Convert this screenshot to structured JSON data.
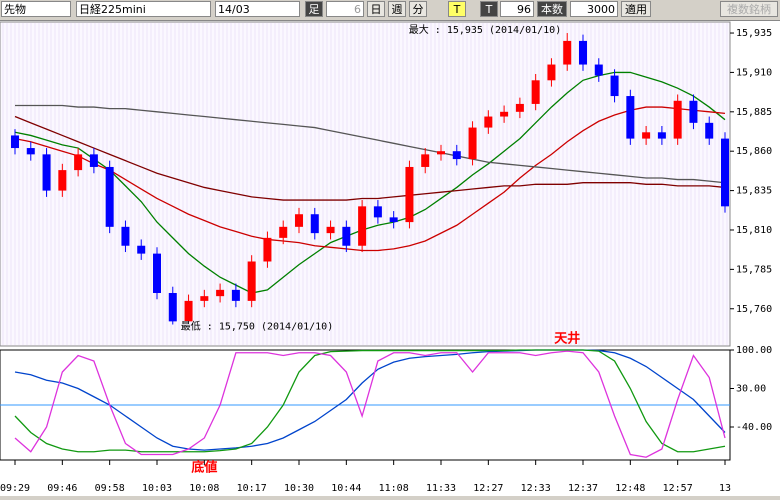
{
  "toolbar": {
    "market": "先物",
    "symbol": "日経225mini",
    "contract": "14/03",
    "bar_type": "足",
    "count_field": "6",
    "day": "日",
    "week": "週",
    "minute": "分",
    "t_yellow": "T",
    "t_black": "T",
    "interval": "96",
    "bars_label": "本数",
    "bars": "3000",
    "apply": "適用",
    "multi": "複数銘柄"
  },
  "chart_data": [
    {
      "type": "candlestick",
      "annotations": {
        "max": "最大 : 15,935 (2014/01/10)",
        "min": "最低 : 15,750 (2014/01/10)",
        "top": "天井"
      },
      "up_color": "#ff0000",
      "down_color": "#0000ff",
      "ylim": [
        15737,
        15942
      ],
      "yticks": [
        {
          "value": 15760,
          "label": "15,760"
        },
        {
          "value": 15785,
          "label": "15,785"
        },
        {
          "value": 15810,
          "label": "15,810"
        },
        {
          "value": 15835,
          "label": "15,835"
        },
        {
          "value": 15860,
          "label": "15,860"
        },
        {
          "value": 15885,
          "label": "15,885"
        },
        {
          "value": 15910,
          "label": "15,910"
        },
        {
          "value": 15935,
          "label": "15,935"
        }
      ],
      "open": [
        15870,
        15862,
        15858,
        15835,
        15848,
        15858,
        15850,
        15812,
        15800,
        15795,
        15770,
        15752,
        15765,
        15768,
        15772,
        15765,
        15790,
        15805,
        15812,
        15820,
        15808,
        15812,
        15800,
        15825,
        15818,
        15815,
        15850,
        15858,
        15860,
        15855,
        15875,
        15882,
        15885,
        15890,
        15905,
        15915,
        15930,
        15915,
        15908,
        15895,
        15868,
        15872,
        15868,
        15892,
        15878,
        15868
      ],
      "high": [
        15874,
        15866,
        15862,
        15852,
        15862,
        15862,
        15854,
        15816,
        15804,
        15799,
        15774,
        15769,
        15772,
        15776,
        15776,
        15794,
        15809,
        15816,
        15824,
        15824,
        15816,
        15816,
        15829,
        15829,
        15822,
        15854,
        15862,
        15864,
        15864,
        15879,
        15886,
        15889,
        15894,
        15909,
        15919,
        15935,
        15934,
        15919,
        15912,
        15899,
        15876,
        15876,
        15896,
        15896,
        15882,
        15872
      ],
      "low": [
        15858,
        15854,
        15831,
        15831,
        15844,
        15846,
        15808,
        15796,
        15791,
        15766,
        15750,
        15752,
        15761,
        15764,
        15761,
        15761,
        15786,
        15801,
        15808,
        15804,
        15804,
        15796,
        15796,
        15814,
        15811,
        15811,
        15846,
        15854,
        15851,
        15851,
        15871,
        15878,
        15881,
        15886,
        15901,
        15911,
        15911,
        15904,
        15891,
        15864,
        15864,
        15864,
        15864,
        15874,
        15864,
        15821
      ],
      "close": [
        15862,
        15858,
        15835,
        15848,
        15858,
        15850,
        15812,
        15800,
        15795,
        15770,
        15752,
        15765,
        15768,
        15772,
        15765,
        15790,
        15805,
        15812,
        15820,
        15808,
        15812,
        15800,
        15825,
        15818,
        15815,
        15850,
        15858,
        15860,
        15855,
        15875,
        15882,
        15885,
        15890,
        15905,
        15915,
        15930,
        15915,
        15908,
        15895,
        15868,
        15872,
        15868,
        15892,
        15878,
        15868,
        15825
      ],
      "series": [
        {
          "color": "#008000",
          "values": [
            15872,
            15870,
            15867,
            15864,
            15862,
            15855,
            15848,
            15838,
            15828,
            15815,
            15805,
            15795,
            15787,
            15780,
            15775,
            15770,
            15772,
            15780,
            15788,
            15795,
            15802,
            15806,
            15810,
            15813,
            15815,
            15818,
            15823,
            15830,
            15837,
            15845,
            15852,
            15860,
            15868,
            15878,
            15888,
            15897,
            15905,
            15908,
            15910,
            15910,
            15907,
            15904,
            15900,
            15895,
            15888,
            15880
          ]
        },
        {
          "color": "#cc0000",
          "values": [
            15868,
            15866,
            15863,
            15860,
            15857,
            15852,
            15848,
            15842,
            15836,
            15830,
            15825,
            15820,
            15816,
            15812,
            15809,
            15806,
            15804,
            15803,
            15802,
            15800,
            15799,
            15798,
            15797,
            15797,
            15798,
            15800,
            15803,
            15808,
            15813,
            15820,
            15827,
            15834,
            15843,
            15851,
            15858,
            15866,
            15873,
            15879,
            15883,
            15886,
            15888,
            15888,
            15887,
            15886,
            15885,
            15884
          ]
        },
        {
          "color": "#800000",
          "values": [
            15882,
            15878,
            15874,
            15870,
            15866,
            15862,
            15858,
            15854,
            15850,
            15846,
            15843,
            15840,
            15837,
            15835,
            15833,
            15831,
            15830,
            15829,
            15829,
            15829,
            15829,
            15829,
            15830,
            15830,
            15831,
            15832,
            15833,
            15834,
            15835,
            15836,
            15837,
            15838,
            15838,
            15839,
            15839,
            15839,
            15840,
            15840,
            15840,
            15840,
            15839,
            15839,
            15838,
            15838,
            15838,
            15837
          ]
        },
        {
          "color": "#555555",
          "values": [
            15889,
            15889,
            15889,
            15889,
            15888,
            15888,
            15887,
            15887,
            15886,
            15885,
            15884,
            15883,
            15882,
            15881,
            15880,
            15879,
            15878,
            15877,
            15876,
            15875,
            15873,
            15871,
            15869,
            15867,
            15865,
            15863,
            15861,
            15859,
            15857,
            15855,
            15853,
            15852,
            15851,
            15850,
            15849,
            15848,
            15847,
            15846,
            15845,
            15844,
            15843,
            15843,
            15842,
            15842,
            15841,
            15840
          ]
        }
      ]
    },
    {
      "type": "line",
      "annotations": {
        "bottom": "底値"
      },
      "categories": [
        "09:29",
        null,
        null,
        "09:46",
        null,
        null,
        "09:58",
        null,
        null,
        "10:03",
        null,
        null,
        "10:08",
        null,
        null,
        "10:17",
        null,
        null,
        "10:30",
        null,
        null,
        "10:44",
        null,
        null,
        "11:08",
        null,
        null,
        "11:33",
        null,
        null,
        "12:27",
        null,
        null,
        "12:33",
        null,
        null,
        "12:37",
        null,
        null,
        "12:48",
        null,
        null,
        "12:57",
        null,
        null,
        "13"
      ],
      "ylim": [
        -100,
        100
      ],
      "yticks": [
        {
          "value": 100,
          "label": "100.00"
        },
        {
          "value": 30,
          "label": "30.00"
        },
        {
          "value": -40,
          "label": "-40.00"
        }
      ],
      "hline": 0,
      "series": [
        {
          "color": "#0044cc",
          "values": [
            60,
            55,
            45,
            40,
            30,
            15,
            0,
            -20,
            -40,
            -60,
            -75,
            -80,
            -82,
            -80,
            -78,
            -75,
            -70,
            -60,
            -45,
            -30,
            -10,
            10,
            40,
            65,
            78,
            85,
            88,
            90,
            92,
            95,
            97,
            98,
            99,
            100,
            100,
            100,
            100,
            99,
            95,
            85,
            70,
            50,
            30,
            10,
            -20,
            -50
          ]
        },
        {
          "color": "#119911",
          "values": [
            -20,
            -50,
            -70,
            -80,
            -85,
            -85,
            -82,
            -82,
            -85,
            -85,
            -85,
            -85,
            -85,
            -83,
            -80,
            -70,
            -40,
            0,
            60,
            90,
            97,
            98,
            99,
            99,
            99,
            99,
            99,
            99,
            99,
            99,
            99,
            99,
            100,
            100,
            100,
            100,
            100,
            98,
            80,
            30,
            -30,
            -70,
            -85,
            -85,
            -80,
            -75
          ]
        },
        {
          "color": "#dd33dd",
          "values": [
            -60,
            -85,
            -40,
            60,
            90,
            80,
            0,
            -70,
            -90,
            -90,
            -90,
            -80,
            -60,
            0,
            95,
            95,
            95,
            90,
            95,
            95,
            90,
            60,
            -20,
            80,
            95,
            95,
            90,
            95,
            95,
            60,
            95,
            95,
            95,
            90,
            95,
            98,
            95,
            60,
            -20,
            -90,
            -95,
            -80,
            10,
            90,
            50,
            -60
          ]
        }
      ]
    }
  ]
}
